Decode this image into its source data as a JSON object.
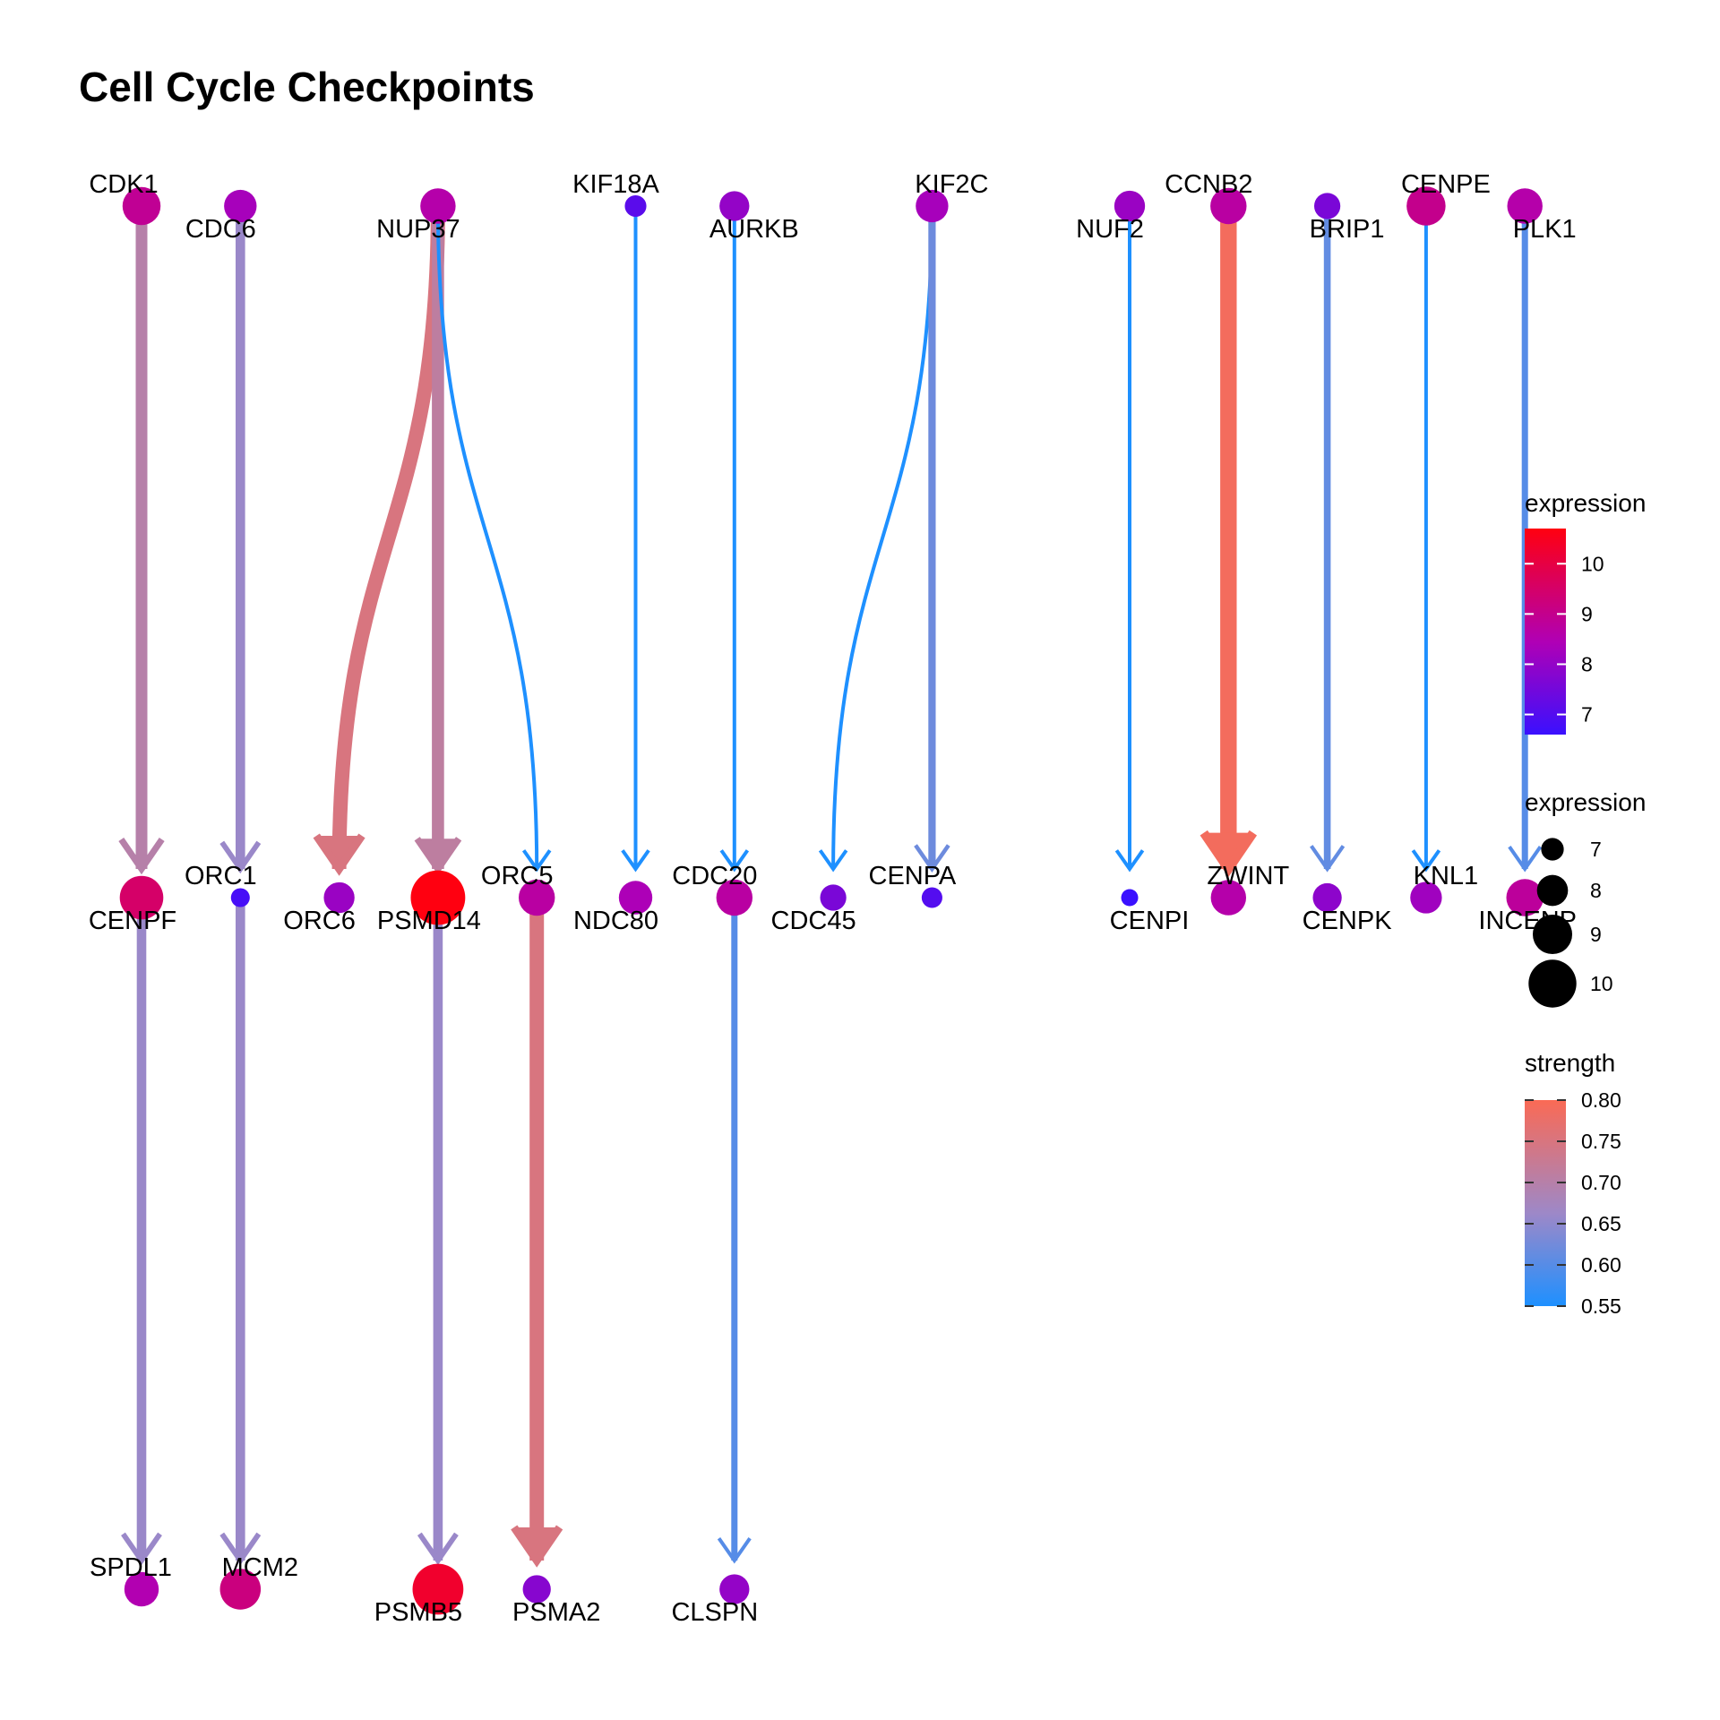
{
  "title": "Cell Cycle Checkpoints",
  "chart_data": {
    "type": "network",
    "nodes": [
      {
        "id": "CDK1",
        "expression": 8.9
      },
      {
        "id": "CDC6",
        "expression": 8.3
      },
      {
        "id": "NUP37",
        "expression": 8.6
      },
      {
        "id": "KIF18A",
        "expression": 7.1
      },
      {
        "id": "AURKB",
        "expression": 8.0
      },
      {
        "id": "KIF2C",
        "expression": 8.3
      },
      {
        "id": "NUF2",
        "expression": 8.1
      },
      {
        "id": "CCNB2",
        "expression": 8.7
      },
      {
        "id": "BRIP1",
        "expression": 7.6
      },
      {
        "id": "CENPE",
        "expression": 9.0
      },
      {
        "id": "PLK1",
        "expression": 8.6
      },
      {
        "id": "CENPF",
        "expression": 9.5
      },
      {
        "id": "ORC1",
        "expression": 6.8
      },
      {
        "id": "ORC6",
        "expression": 8.1
      },
      {
        "id": "PSMD14",
        "expression": 10.7
      },
      {
        "id": "ORC5",
        "expression": 8.7
      },
      {
        "id": "NDC80",
        "expression": 8.4
      },
      {
        "id": "CDC20",
        "expression": 8.7
      },
      {
        "id": "CDC45",
        "expression": 7.6
      },
      {
        "id": "CENPA",
        "expression": 7.0
      },
      {
        "id": "CENPI",
        "expression": 6.6
      },
      {
        "id": "ZWINT",
        "expression": 8.6
      },
      {
        "id": "CENPK",
        "expression": 7.9
      },
      {
        "id": "KNL1",
        "expression": 8.2
      },
      {
        "id": "INCENP",
        "expression": 8.8
      },
      {
        "id": "SPDL1",
        "expression": 8.5
      },
      {
        "id": "MCM2",
        "expression": 9.2
      },
      {
        "id": "PSMB5",
        "expression": 10.3
      },
      {
        "id": "PSMA2",
        "expression": 7.8
      },
      {
        "id": "CLSPN",
        "expression": 8.0
      }
    ],
    "edges": [
      {
        "from": "CDK1",
        "to": "CENPF",
        "strength": 0.7
      },
      {
        "from": "CDC6",
        "to": "ORC1",
        "strength": 0.66
      },
      {
        "from": "NUP37",
        "to": "ORC6",
        "strength": 0.75
      },
      {
        "from": "NUP37",
        "to": "PSMD14",
        "strength": 0.71
      },
      {
        "from": "NUP37",
        "to": "ORC5",
        "strength": 0.55
      },
      {
        "from": "KIF18A",
        "to": "NDC80",
        "strength": 0.55
      },
      {
        "from": "AURKB",
        "to": "CDC20",
        "strength": 0.55
      },
      {
        "from": "KIF2C",
        "to": "CDC45",
        "strength": 0.55
      },
      {
        "from": "KIF2C",
        "to": "CENPA",
        "strength": 0.62
      },
      {
        "from": "NUF2",
        "to": "CENPI",
        "strength": 0.55
      },
      {
        "from": "CCNB2",
        "to": "ZWINT",
        "strength": 0.79
      },
      {
        "from": "BRIP1",
        "to": "CENPK",
        "strength": 0.61
      },
      {
        "from": "CENPE",
        "to": "KNL1",
        "strength": 0.55
      },
      {
        "from": "PLK1",
        "to": "INCENP",
        "strength": 0.6
      },
      {
        "from": "CENPF",
        "to": "SPDL1",
        "strength": 0.66
      },
      {
        "from": "ORC1",
        "to": "MCM2",
        "strength": 0.66
      },
      {
        "from": "PSMD14",
        "to": "PSMB5",
        "strength": 0.66
      },
      {
        "from": "ORC5",
        "to": "PSMA2",
        "strength": 0.75
      },
      {
        "from": "CDC20",
        "to": "CLSPN",
        "strength": 0.6
      }
    ],
    "legend": {
      "color_title": "expression",
      "color_ticks": [
        "10",
        "9",
        "8",
        "7"
      ],
      "size_title": "expression",
      "size_ticks": [
        "7",
        "8",
        "9",
        "10"
      ],
      "strength_title": "strength",
      "strength_ticks": [
        "0.80",
        "0.75",
        "0.70",
        "0.65",
        "0.60",
        "0.55"
      ],
      "placement": "right"
    },
    "colors": {
      "expression_low": "#3a10ff",
      "expression_mid": "#b000b5",
      "expression_high": "#ff0010",
      "strength_low": "#1e90ff",
      "strength_high": "#fa6a55"
    }
  }
}
